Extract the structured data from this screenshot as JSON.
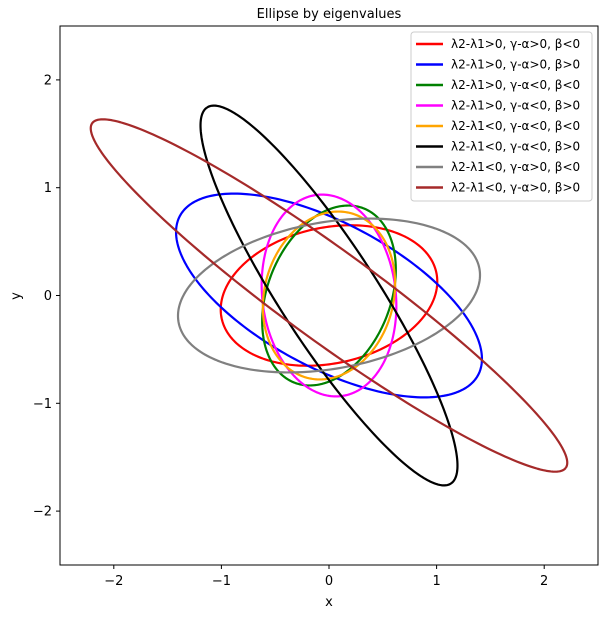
{
  "chart_data": {
    "type": "line",
    "title": "Ellipse by eigenvalues",
    "xlabel": "x",
    "ylabel": "y",
    "xlim": [
      -2.5,
      2.5
    ],
    "ylim": [
      -2.5,
      2.5
    ],
    "xticks": [
      -2,
      -1,
      0,
      1,
      2
    ],
    "yticks": [
      -2,
      -1,
      0,
      1,
      2
    ],
    "x_tick_labels": [
      "−2",
      "−1",
      "0",
      "1",
      "2"
    ],
    "y_tick_labels": [
      "−2",
      "−1",
      "0",
      "1",
      "2"
    ],
    "grid": false,
    "legend_position": "top-right",
    "series": [
      {
        "name": "λ2-λ1>0, γ-α>0, β<0",
        "color": "#ff0000",
        "shape": "ellipse",
        "center": [
          0,
          0
        ],
        "semi_major": 1.02,
        "semi_minor": 0.63,
        "angle_deg": 12
      },
      {
        "name": "λ2-λ1>0, γ-α>0, β>0",
        "color": "#0000ff",
        "shape": "ellipse",
        "center": [
          0,
          0
        ],
        "semi_major": 1.57,
        "semi_minor": 0.67,
        "angle_deg": -28
      },
      {
        "name": "λ2-λ1>0, γ-α<0, β<0",
        "color": "#008000",
        "shape": "ellipse",
        "center": [
          0,
          0
        ],
        "semi_major": 0.87,
        "semi_minor": 0.57,
        "angle_deg": 68
      },
      {
        "name": "λ2-λ1>0, γ-α<0, β>0",
        "color": "#ff00ff",
        "shape": "ellipse",
        "center": [
          0,
          0
        ],
        "semi_major": 0.94,
        "semi_minor": 0.62,
        "angle_deg": 97
      },
      {
        "name": "λ2-λ1<0, γ-α<0, β<0",
        "color": "#ffa500",
        "shape": "ellipse",
        "center": [
          0,
          0
        ],
        "semi_major": 0.79,
        "semi_minor": 0.6,
        "angle_deg": 75
      },
      {
        "name": "λ2-λ1<0, γ-α<0, β>0",
        "color": "#000000",
        "shape": "ellipse",
        "center": [
          0,
          0
        ],
        "semi_major": 2.08,
        "semi_minor": 0.45,
        "angle_deg": 123
      },
      {
        "name": "λ2-λ1<0, γ-α>0, β<0",
        "color": "#808080",
        "shape": "ellipse",
        "center": [
          0,
          0
        ],
        "semi_major": 1.42,
        "semi_minor": 0.68,
        "angle_deg": 10
      },
      {
        "name": "λ2-λ1<0, γ-α>0, β>0",
        "color": "#a52a2a",
        "shape": "ellipse",
        "center": [
          0,
          0
        ],
        "semi_major": 2.72,
        "semi_minor": 0.42,
        "angle_deg": -36
      }
    ]
  }
}
